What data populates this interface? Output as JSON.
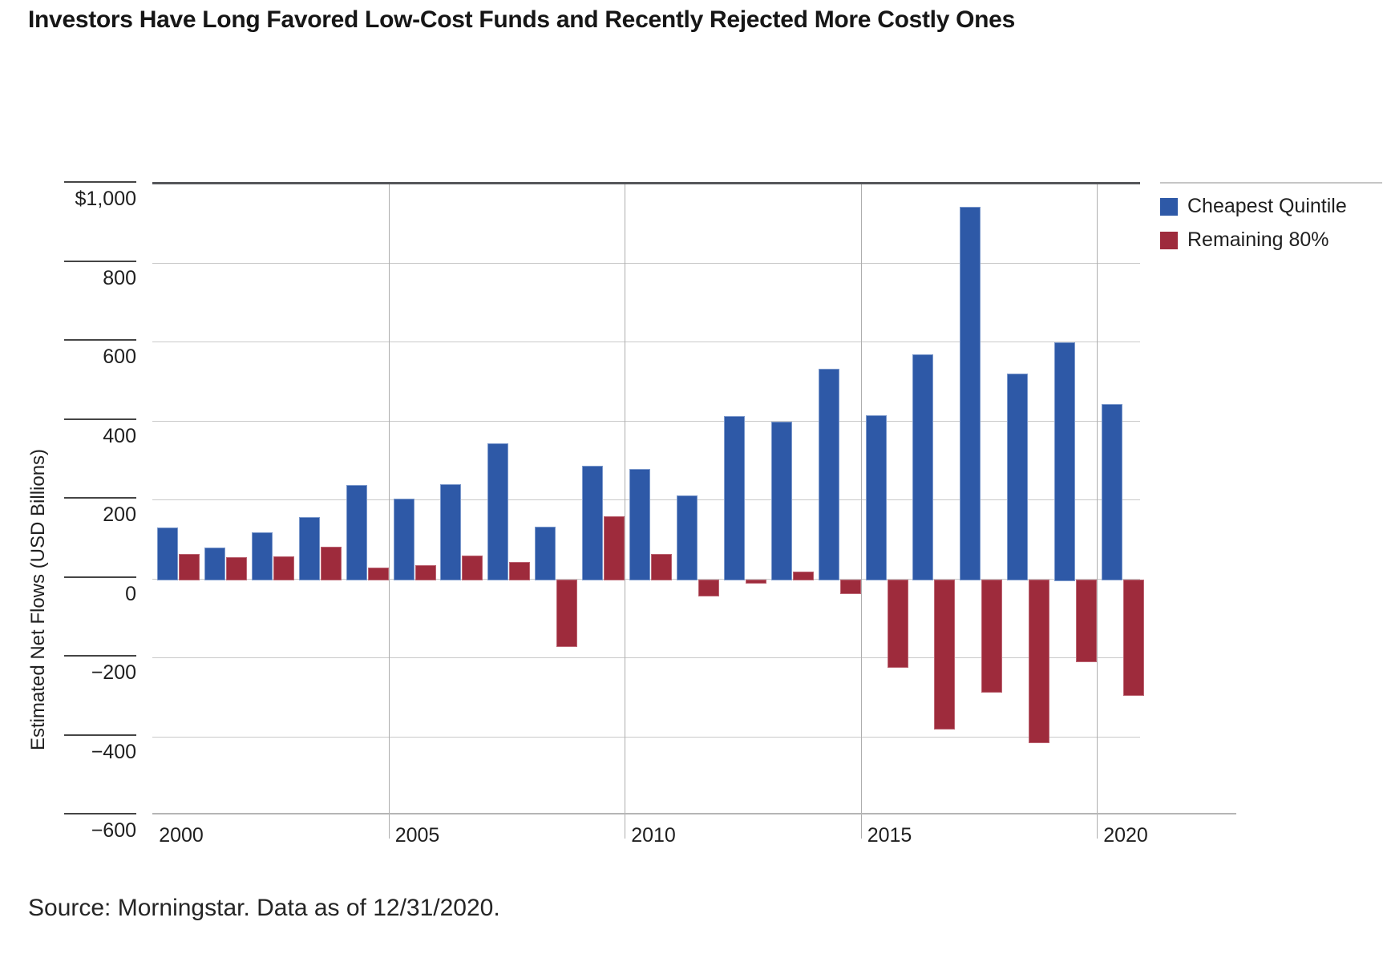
{
  "title": "Investors Have Long Favored Low-Cost Funds and Recently Rejected More Costly Ones",
  "source": "Source: Morningstar. Data as of 12/31/2020.",
  "colors": {
    "cheapest_quintile": "#2E59A7",
    "remaining_80": "#9E2B3C",
    "grid": "#c9c9c9",
    "plot_top_border": "#55565a"
  },
  "legend": {
    "items": [
      {
        "label": "Cheapest Quintile",
        "color": "#2E59A7"
      },
      {
        "label": "Remaining 80%",
        "color": "#9E2B3C"
      }
    ]
  },
  "chart_data": {
    "type": "bar",
    "title": "Investors Have Long Favored Low-Cost Funds and Recently Rejected More Costly Ones",
    "xlabel": "",
    "ylabel": "Estimated Net Flows (USD Billions)",
    "ylim": [
      -600,
      1000
    ],
    "ytick_interval": 200,
    "ytick_values": [
      1000,
      800,
      600,
      400,
      200,
      0,
      -200,
      -400,
      -600
    ],
    "ytick_labels": [
      "$1,000",
      "800",
      "600",
      "400",
      "200",
      "0",
      "−200",
      "−400",
      "−600"
    ],
    "xtick_labels": [
      "2000",
      "2005",
      "2010",
      "2015",
      "2020"
    ],
    "grid": true,
    "legend_position": "top-right",
    "categories": [
      2000,
      2001,
      2002,
      2003,
      2004,
      2005,
      2006,
      2007,
      2008,
      2009,
      2010,
      2011,
      2012,
      2013,
      2014,
      2015,
      2016,
      2017,
      2018,
      2019,
      2020
    ],
    "series": [
      {
        "name": "Cheapest Quintile",
        "color": "#2E59A7",
        "values": [
          130,
          80,
          118,
          157,
          238,
          204,
          241,
          345,
          133,
          288,
          280,
          213,
          413,
          399,
          533,
          415,
          570,
          944,
          521,
          600,
          443
        ]
      },
      {
        "name": "Remaining 80%",
        "color": "#9E2B3C",
        "values": [
          63,
          55,
          57,
          83,
          29,
          35,
          59,
          43,
          -168,
          160,
          64,
          -40,
          -8,
          19,
          -34,
          -221,
          -376,
          -284,
          -412,
          -207,
          -291
        ]
      }
    ]
  }
}
